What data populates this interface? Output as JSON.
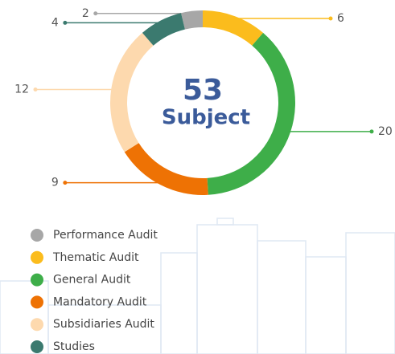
{
  "chart_data": {
    "type": "pie",
    "donut": true,
    "center_value": 53,
    "center_label": "Subject",
    "center_color": "#3b5b9a",
    "categories": [
      "Performance Audit",
      "Thematic Audit",
      "General Audit",
      "Mandatory Audit",
      "Subsidiaries Audit",
      "Studies"
    ],
    "values": [
      2,
      6,
      20,
      9,
      12,
      4
    ],
    "colors": [
      "#a7a7a7",
      "#fbbc1d",
      "#3eae49",
      "#ee7204",
      "#fdd9ae",
      "#3b7a6f"
    ]
  }
}
